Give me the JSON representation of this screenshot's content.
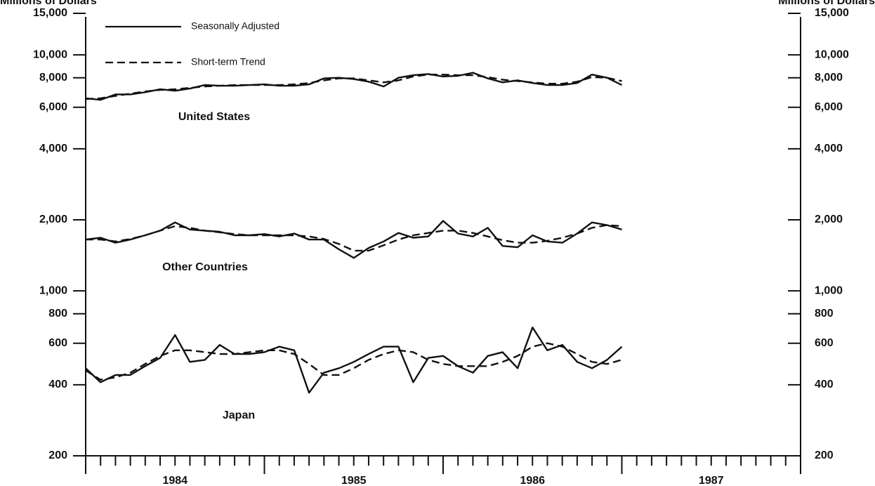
{
  "chart_data": {
    "type": "line",
    "y_label": "Millions of Dollars",
    "y2_label": "Millions of Dollars",
    "regions": [
      "United States",
      "Other Countries",
      "Japan"
    ],
    "x": [
      1984,
      1984.083,
      1984.167,
      1984.25,
      1984.333,
      1984.417,
      1984.5,
      1984.583,
      1984.667,
      1984.75,
      1984.833,
      1984.917,
      1985,
      1985.083,
      1985.167,
      1985.25,
      1985.333,
      1985.417,
      1985.5,
      1985.583,
      1985.667,
      1985.75,
      1985.833,
      1985.917,
      1986,
      1986.083,
      1986.167,
      1986.25,
      1986.333,
      1986.417,
      1986.5,
      1986.583,
      1986.667,
      1986.75,
      1986.833,
      1986.917,
      1987
    ],
    "xlim": [
      1984,
      1988
    ],
    "xticks": [
      1984,
      1985,
      1986,
      1987
    ],
    "series": [
      {
        "name": "Seasonally Adjusted",
        "color": "#111111",
        "style": "solid",
        "values": [
          [
            6550,
            6450,
            6800,
            6800,
            6950,
            7150,
            7050,
            7200,
            7450,
            7400,
            7400,
            7450,
            7500,
            7400,
            7400,
            7500,
            7950,
            8000,
            7900,
            7700,
            7350,
            8000,
            8200,
            8300,
            8100,
            8150,
            8400,
            7950,
            7650,
            7800,
            7600,
            7450,
            7450,
            7600,
            8250,
            8000,
            7450
          ],
          [
            1650,
            1680,
            1600,
            1650,
            1720,
            1800,
            1950,
            1820,
            1800,
            1780,
            1720,
            1720,
            1740,
            1700,
            1750,
            1650,
            1650,
            1500,
            1380,
            1520,
            1620,
            1760,
            1680,
            1700,
            1980,
            1750,
            1700,
            1850,
            1550,
            1530,
            1720,
            1620,
            1600,
            1750,
            1950,
            1900,
            1820
          ],
          [
            470,
            410,
            440,
            440,
            480,
            520,
            650,
            500,
            510,
            590,
            540,
            540,
            550,
            580,
            560,
            370,
            450,
            470,
            500,
            540,
            580,
            580,
            410,
            520,
            530,
            480,
            450,
            530,
            550,
            470,
            700,
            560,
            590,
            500,
            470,
            510,
            580
          ]
        ]
      },
      {
        "name": "Short-term Trend",
        "color": "#111111",
        "style": "dashed",
        "values": [
          [
            6500,
            6550,
            6700,
            6850,
            7000,
            7100,
            7150,
            7250,
            7350,
            7400,
            7450,
            7450,
            7450,
            7450,
            7500,
            7600,
            7800,
            7950,
            7950,
            7800,
            7650,
            7800,
            8100,
            8250,
            8250,
            8200,
            8200,
            8050,
            7850,
            7750,
            7650,
            7550,
            7550,
            7700,
            8050,
            8000,
            7750
          ],
          [
            1650,
            1650,
            1620,
            1660,
            1720,
            1800,
            1880,
            1850,
            1800,
            1770,
            1740,
            1720,
            1720,
            1720,
            1720,
            1700,
            1660,
            1580,
            1480,
            1480,
            1560,
            1650,
            1720,
            1760,
            1800,
            1800,
            1760,
            1700,
            1640,
            1600,
            1600,
            1630,
            1680,
            1750,
            1850,
            1900,
            1880
          ],
          [
            460,
            420,
            430,
            450,
            490,
            530,
            560,
            560,
            550,
            540,
            540,
            550,
            560,
            560,
            540,
            490,
            440,
            440,
            470,
            510,
            540,
            560,
            550,
            510,
            490,
            480,
            480,
            480,
            500,
            530,
            580,
            600,
            580,
            540,
            500,
            490,
            510
          ]
        ]
      }
    ],
    "log_y": true,
    "ylim": [
      200,
      15000
    ],
    "yticks": [
      200,
      400,
      600,
      800,
      {
        "value": 1000,
        "label": "1,000"
      },
      {
        "value": 2000,
        "label": "2,000"
      },
      {
        "value": 4000,
        "label": "4,000"
      },
      {
        "value": 6000,
        "label": "6,000"
      },
      {
        "value": 8000,
        "label": "8,000"
      },
      {
        "value": 10000,
        "label": "10,000"
      },
      {
        "value": 15000,
        "label": "15,000"
      }
    ],
    "y2lim": [
      200,
      15000
    ],
    "y2ticks": [
      200,
      400,
      600,
      800,
      {
        "value": 1000,
        "label": "1,000"
      },
      {
        "value": 2000,
        "label": "2,000"
      },
      {
        "value": 4000,
        "label": "4,000"
      },
      {
        "value": 6000,
        "label": "6,000"
      },
      {
        "value": 8000,
        "label": "8,000"
      },
      {
        "value": 10000,
        "label": "10,000"
      },
      {
        "value": 15000,
        "label": "15,000"
      }
    ]
  }
}
